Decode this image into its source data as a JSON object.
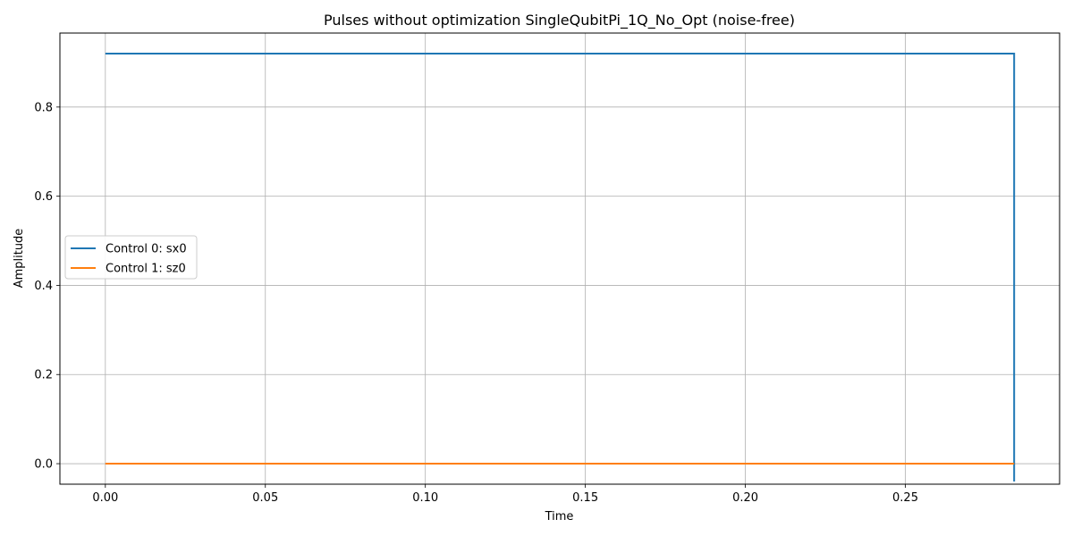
{
  "chart_data": {
    "type": "line",
    "title": "Pulses without optimization SingleQubitPi_1Q_No_Opt (noise-free)",
    "xlabel": "Time",
    "ylabel": "Amplitude",
    "xlim": [
      -0.0142,
      0.2982
    ],
    "ylim": [
      -0.046,
      0.966
    ],
    "xticks": [
      0.0,
      0.05,
      0.1,
      0.15,
      0.2,
      0.25
    ],
    "xtick_labels": [
      "0.00",
      "0.05",
      "0.10",
      "0.15",
      "0.20",
      "0.25"
    ],
    "yticks": [
      0.0,
      0.2,
      0.4,
      0.6,
      0.8
    ],
    "ytick_labels": [
      "0.0",
      "0.2",
      "0.4",
      "0.6",
      "0.8"
    ],
    "grid": true,
    "legend": "center-left",
    "series": [
      {
        "name": "Control 0: sx0",
        "color": "#1f77b4",
        "drawstyle": "steps-post",
        "x": [
          0.0,
          0.284,
          0.284
        ],
        "y": [
          0.92,
          0.92,
          -0.04
        ]
      },
      {
        "name": "Control 1: sz0",
        "color": "#ff7f0e",
        "drawstyle": "steps-post",
        "x": [
          0.0,
          0.284
        ],
        "y": [
          0.0,
          0.0
        ]
      }
    ]
  }
}
